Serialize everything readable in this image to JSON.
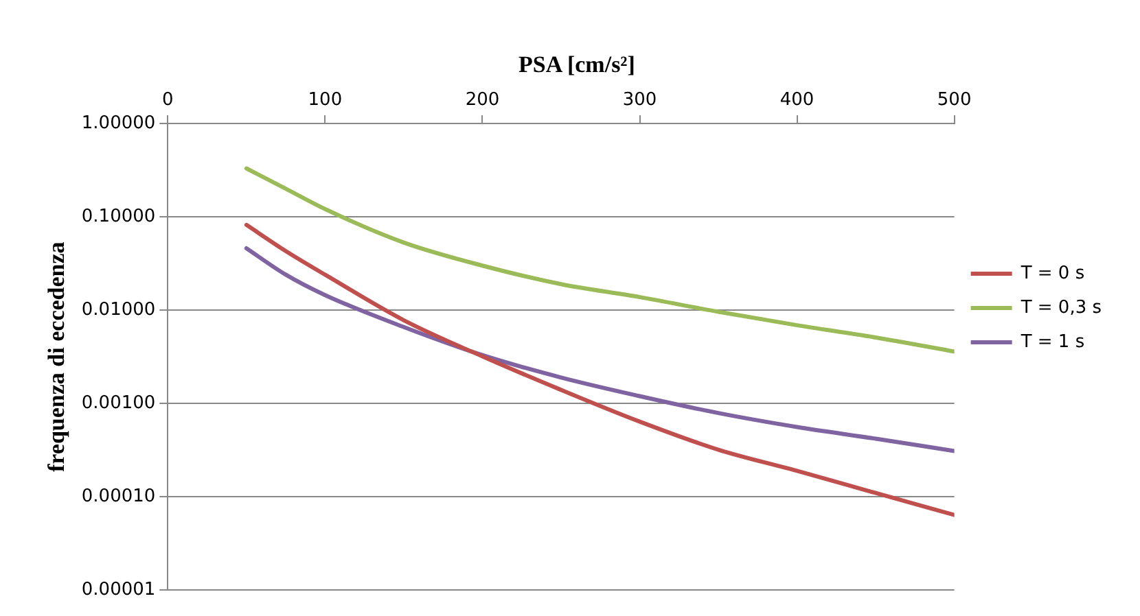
{
  "chart_data": {
    "type": "line",
    "title": "PSA [cm/s²]",
    "ylabel": "frequenza di eccedenza",
    "x": [
      50,
      75,
      100,
      150,
      200,
      250,
      300,
      350,
      400,
      450,
      500
    ],
    "series": [
      {
        "name": "T = 0 s",
        "color": "#c0504d",
        "values": [
          0.082,
          0.043,
          0.024,
          0.0078,
          0.0032,
          0.0014,
          0.00064,
          0.00032,
          0.00019,
          0.00011,
          6.4e-05
        ]
      },
      {
        "name": "T = 0,3 s",
        "color": "#9bbb59",
        "values": [
          0.33,
          0.2,
          0.121,
          0.053,
          0.03,
          0.019,
          0.0138,
          0.0096,
          0.0069,
          0.0051,
          0.0036
        ]
      },
      {
        "name": "T = 1 s",
        "color": "#8064a2",
        "values": [
          0.046,
          0.024,
          0.0145,
          0.0066,
          0.0033,
          0.0019,
          0.0012,
          0.00079,
          0.00056,
          0.00042,
          0.00031
        ]
      }
    ],
    "xlim": [
      0,
      500
    ],
    "xticks": [
      0,
      100,
      200,
      300,
      400,
      500
    ],
    "ylim": [
      1e-05,
      1
    ],
    "yticks": [
      {
        "value": 1,
        "label": "1.00000"
      },
      {
        "value": 0.1,
        "label": "0.10000"
      },
      {
        "value": 0.01,
        "label": "0.01000"
      },
      {
        "value": 0.001,
        "label": "0.00100"
      },
      {
        "value": 0.0001,
        "label": "0.00010"
      },
      {
        "value": 1e-05,
        "label": "0.00001"
      }
    ],
    "log": "y",
    "grid": "y",
    "legend": "right",
    "marker": "none",
    "line_style": "solid"
  }
}
